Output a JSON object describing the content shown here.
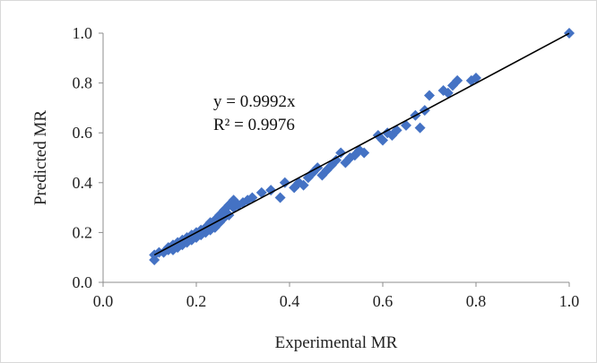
{
  "chart_data": {
    "type": "scatter",
    "title": "",
    "xlabel": "Experimental MR",
    "ylabel": "Predicted MR",
    "xlim": [
      0.0,
      1.0
    ],
    "ylim": [
      0.0,
      1.0
    ],
    "xticks": [
      "0.0",
      "0.2",
      "0.4",
      "0.6",
      "0.8",
      "1.0"
    ],
    "yticks": [
      "0.0",
      "0.2",
      "0.4",
      "0.6",
      "0.8",
      "1.0"
    ],
    "grid": false,
    "legend": "none",
    "marker_color": "#4472C4",
    "line_color": "#000000",
    "annotation": {
      "equation": "y = 0.9992x",
      "r_squared": "R² = 0.9976"
    },
    "trendline": {
      "slope": 0.9992,
      "x_range": [
        0.11,
        1.0
      ]
    },
    "points": [
      [
        0.11,
        0.09
      ],
      [
        0.11,
        0.11
      ],
      [
        0.12,
        0.12
      ],
      [
        0.13,
        0.12
      ],
      [
        0.14,
        0.13
      ],
      [
        0.14,
        0.14
      ],
      [
        0.15,
        0.13
      ],
      [
        0.15,
        0.15
      ],
      [
        0.16,
        0.14
      ],
      [
        0.16,
        0.16
      ],
      [
        0.17,
        0.15
      ],
      [
        0.17,
        0.17
      ],
      [
        0.18,
        0.16
      ],
      [
        0.18,
        0.18
      ],
      [
        0.19,
        0.17
      ],
      [
        0.19,
        0.19
      ],
      [
        0.2,
        0.18
      ],
      [
        0.2,
        0.2
      ],
      [
        0.21,
        0.19
      ],
      [
        0.21,
        0.21
      ],
      [
        0.22,
        0.2
      ],
      [
        0.22,
        0.22
      ],
      [
        0.23,
        0.21
      ],
      [
        0.23,
        0.24
      ],
      [
        0.24,
        0.22
      ],
      [
        0.24,
        0.25
      ],
      [
        0.25,
        0.24
      ],
      [
        0.25,
        0.27
      ],
      [
        0.26,
        0.26
      ],
      [
        0.26,
        0.29
      ],
      [
        0.27,
        0.27
      ],
      [
        0.27,
        0.31
      ],
      [
        0.28,
        0.3
      ],
      [
        0.28,
        0.33
      ],
      [
        0.29,
        0.31
      ],
      [
        0.3,
        0.32
      ],
      [
        0.31,
        0.33
      ],
      [
        0.32,
        0.34
      ],
      [
        0.34,
        0.36
      ],
      [
        0.36,
        0.37
      ],
      [
        0.38,
        0.34
      ],
      [
        0.39,
        0.4
      ],
      [
        0.41,
        0.38
      ],
      [
        0.42,
        0.4
      ],
      [
        0.43,
        0.39
      ],
      [
        0.44,
        0.42
      ],
      [
        0.45,
        0.44
      ],
      [
        0.46,
        0.46
      ],
      [
        0.47,
        0.43
      ],
      [
        0.48,
        0.45
      ],
      [
        0.49,
        0.47
      ],
      [
        0.5,
        0.49
      ],
      [
        0.51,
        0.52
      ],
      [
        0.52,
        0.48
      ],
      [
        0.53,
        0.5
      ],
      [
        0.54,
        0.51
      ],
      [
        0.55,
        0.53
      ],
      [
        0.56,
        0.52
      ],
      [
        0.59,
        0.59
      ],
      [
        0.6,
        0.57
      ],
      [
        0.61,
        0.6
      ],
      [
        0.62,
        0.59
      ],
      [
        0.63,
        0.61
      ],
      [
        0.65,
        0.63
      ],
      [
        0.67,
        0.67
      ],
      [
        0.68,
        0.62
      ],
      [
        0.69,
        0.69
      ],
      [
        0.7,
        0.75
      ],
      [
        0.73,
        0.77
      ],
      [
        0.74,
        0.76
      ],
      [
        0.75,
        0.79
      ],
      [
        0.76,
        0.81
      ],
      [
        0.79,
        0.81
      ],
      [
        0.8,
        0.82
      ],
      [
        1.0,
        1.0
      ]
    ]
  }
}
